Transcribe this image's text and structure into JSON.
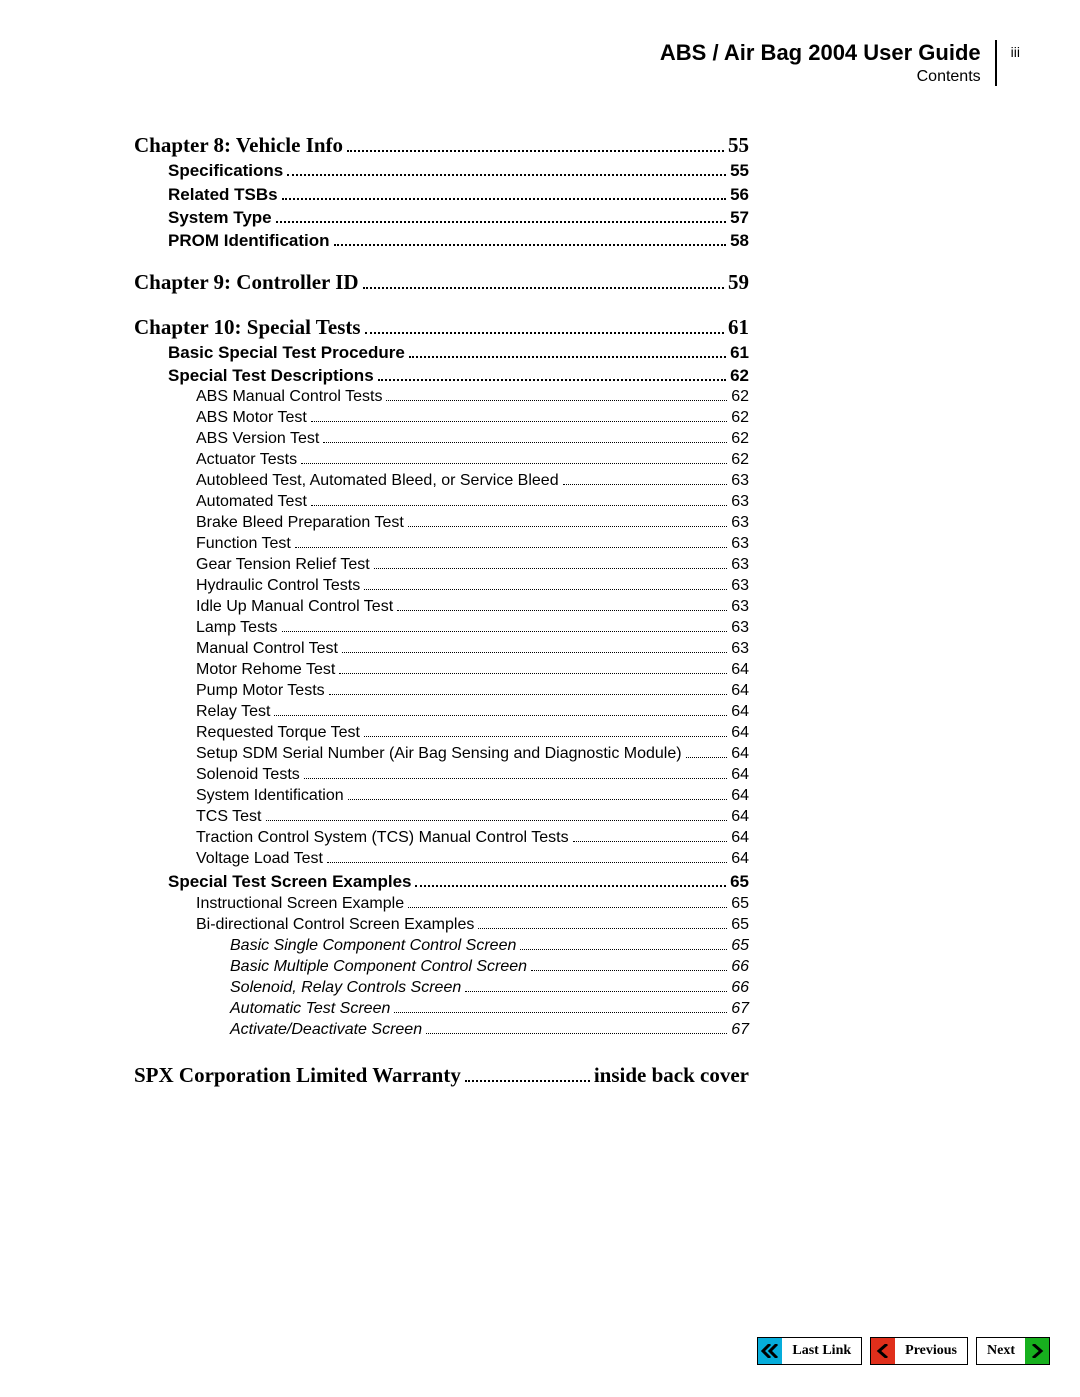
{
  "header": {
    "title": "ABS / Air Bag 2004 User Guide",
    "subtitle": "Contents",
    "page_number": "iii"
  },
  "colors": {
    "lastlink_arrow": "#05addb",
    "previous_arrow": "#e02f1b",
    "next_arrow": "#17b01e",
    "text": "#000000",
    "background": "#ffffff"
  },
  "toc": [
    {
      "level": 0,
      "label": "Chapter 8: Vehicle Info",
      "page": "55"
    },
    {
      "level": 1,
      "label": "Specifications",
      "page": "55"
    },
    {
      "level": 1,
      "label": "Related TSBs",
      "page": "56"
    },
    {
      "level": 1,
      "label": "System Type",
      "page": "57"
    },
    {
      "level": 1,
      "label": "PROM Identification",
      "page": "58"
    },
    {
      "level": 0,
      "label": "Chapter 9: Controller ID",
      "page": "59"
    },
    {
      "level": 0,
      "label": "Chapter 10: Special Tests",
      "page": "61"
    },
    {
      "level": 1,
      "label": "Basic Special Test Procedure",
      "page": "61"
    },
    {
      "level": 1,
      "label": "Special Test Descriptions",
      "page": "62"
    },
    {
      "level": 2,
      "label": "ABS Manual Control Tests",
      "page": "62"
    },
    {
      "level": 2,
      "label": "ABS Motor Test",
      "page": "62"
    },
    {
      "level": 2,
      "label": "ABS Version Test",
      "page": "62"
    },
    {
      "level": 2,
      "label": "Actuator Tests",
      "page": "62"
    },
    {
      "level": 2,
      "label": "Autobleed Test, Automated Bleed, or Service Bleed",
      "page": "63"
    },
    {
      "level": 2,
      "label": "Automated Test",
      "page": "63"
    },
    {
      "level": 2,
      "label": "Brake Bleed Preparation Test",
      "page": "63"
    },
    {
      "level": 2,
      "label": "Function Test",
      "page": "63"
    },
    {
      "level": 2,
      "label": "Gear Tension Relief Test",
      "page": "63"
    },
    {
      "level": 2,
      "label": "Hydraulic Control Tests",
      "page": "63"
    },
    {
      "level": 2,
      "label": "Idle Up Manual Control Test",
      "page": "63"
    },
    {
      "level": 2,
      "label": "Lamp Tests",
      "page": "63"
    },
    {
      "level": 2,
      "label": "Manual Control Test",
      "page": "63"
    },
    {
      "level": 2,
      "label": "Motor Rehome Test",
      "page": "64"
    },
    {
      "level": 2,
      "label": "Pump Motor Tests",
      "page": "64"
    },
    {
      "level": 2,
      "label": "Relay Test",
      "page": "64"
    },
    {
      "level": 2,
      "label": "Requested Torque Test",
      "page": "64"
    },
    {
      "level": 2,
      "label": "Setup SDM Serial Number (Air Bag Sensing and Diagnostic Module)",
      "page": "64"
    },
    {
      "level": 2,
      "label": "Solenoid Tests",
      "page": "64"
    },
    {
      "level": 2,
      "label": "System Identification",
      "page": "64"
    },
    {
      "level": 2,
      "label": "TCS Test",
      "page": "64"
    },
    {
      "level": 2,
      "label": "Traction Control System (TCS) Manual Control Tests",
      "page": "64"
    },
    {
      "level": 2,
      "label": "Voltage Load Test",
      "page": "64"
    },
    {
      "level": 1,
      "label": "Special Test Screen Examples",
      "page": "65"
    },
    {
      "level": 2,
      "label": "Instructional Screen Example",
      "page": "65"
    },
    {
      "level": 2,
      "label": "Bi-directional Control Screen Examples",
      "page": "65"
    },
    {
      "level": 3,
      "label": "Basic Single Component Control Screen",
      "page": "65"
    },
    {
      "level": 3,
      "label": "Basic Multiple Component Control Screen",
      "page": "66"
    },
    {
      "level": 3,
      "label": "Solenoid, Relay Controls Screen",
      "page": "66"
    },
    {
      "level": 3,
      "label": "Automatic Test Screen",
      "page": "67"
    },
    {
      "level": 3,
      "label": "Activate/Deactivate Screen",
      "page": "67"
    },
    {
      "level": "0w",
      "label": "SPX Corporation Limited Warranty",
      "page": "inside back cover"
    }
  ],
  "nav": {
    "lastlink": "Last Link",
    "previous": "Previous",
    "next": "Next"
  }
}
